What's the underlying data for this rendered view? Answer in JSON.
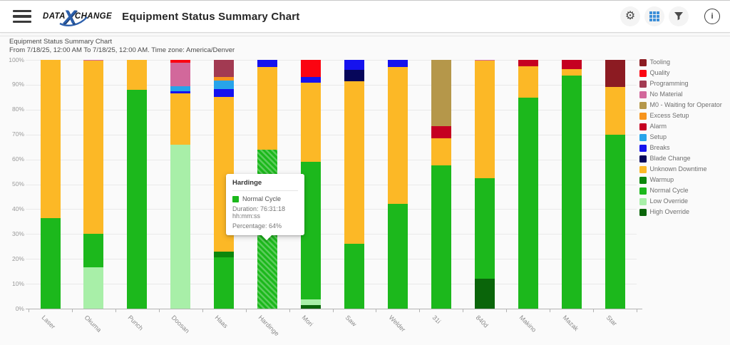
{
  "header": {
    "logo": {
      "part1": "DATA",
      "x": "X",
      "part2": "CHANGE"
    },
    "title": "Equipment Status Summary Chart",
    "icons": {
      "menu": "hamburger-icon",
      "settings": "gear-icon",
      "settings_glyph": "⚙",
      "table": "grid-view-icon",
      "filter": "funnel-icon",
      "info": "info-circle-icon",
      "info_glyph": "i"
    }
  },
  "chart_header": {
    "title": "Equipment Status Summary Chart",
    "range": "From 7/18/25, 12:00 AM To 7/18/25, 12:00 AM. Time zone: America/Denver"
  },
  "tooltip": {
    "title": "Hardinge",
    "series": "Normal Cycle",
    "duration": "Duration: 76:31:18 hh:mm:ss",
    "percentage": "Percentage: 64%",
    "swatch_color": "#1CB81C"
  },
  "chart_data": {
    "type": "bar",
    "stacked": true,
    "unit": "percent",
    "title": "Equipment Status Summary Chart",
    "subtitle": "From 7/18/25, 12:00 AM To 7/18/25, 12:00 AM. Time zone: America/Denver",
    "ylim": [
      0,
      100
    ],
    "ytick_labels": [
      "0%",
      "10%",
      "20%",
      "30%",
      "40%",
      "50%",
      "60%",
      "70%",
      "80%",
      "90%",
      "100%"
    ],
    "grid": true,
    "legend_position": "right",
    "legend": [
      {
        "label": "Tooling",
        "color": "#8C1B22"
      },
      {
        "label": "Quality",
        "color": "#FB0411"
      },
      {
        "label": "Programming",
        "color": "#A23A52"
      },
      {
        "label": "No Material",
        "color": "#D2689B"
      },
      {
        "label": "M0 - Waiting for Operator",
        "color": "#B5974A"
      },
      {
        "label": "Excess Setup",
        "color": "#F7941D"
      },
      {
        "label": "Alarm",
        "color": "#C50021"
      },
      {
        "label": "Setup",
        "color": "#27A4EA"
      },
      {
        "label": "Breaks",
        "color": "#1512EE"
      },
      {
        "label": "Blade Change",
        "color": "#06065A"
      },
      {
        "label": "Unknown Downtime",
        "color": "#FCB826"
      },
      {
        "label": "Warmup",
        "color": "#0C870C"
      },
      {
        "label": "Normal Cycle",
        "color": "#1CB81C"
      },
      {
        "label": "Low Override",
        "color": "#A8EFA8"
      },
      {
        "label": "High Override",
        "color": "#0A650A"
      }
    ],
    "categories": [
      "Laser",
      "Okuma",
      "Punch",
      "Doosan",
      "Haas",
      "Hardinge",
      "Mori",
      "Saw",
      "Welder",
      "31i",
      "840d",
      "Makino",
      "Mazak",
      "Star"
    ],
    "bars": [
      {
        "category": "Laser",
        "segments": [
          [
            "Normal Cycle",
            36.5
          ],
          [
            "Unknown Downtime",
            63.5
          ]
        ]
      },
      {
        "category": "Okuma",
        "segments": [
          [
            "Low Override",
            16.5
          ],
          [
            "Normal Cycle",
            13.7
          ],
          [
            "Unknown Downtime",
            69.4
          ],
          [
            "No Material",
            0.4
          ]
        ]
      },
      {
        "category": "Punch",
        "segments": [
          [
            "Normal Cycle",
            88
          ],
          [
            "Unknown Downtime",
            12
          ]
        ]
      },
      {
        "category": "Doosan",
        "segments": [
          [
            "Low Override",
            66
          ],
          [
            "Unknown Downtime",
            20.5
          ],
          [
            "Breaks",
            1
          ],
          [
            "Setup",
            2
          ],
          [
            "No Material",
            9.3
          ],
          [
            "Quality",
            1.2
          ]
        ]
      },
      {
        "category": "Haas",
        "segments": [
          [
            "Normal Cycle",
            20.5
          ],
          [
            "Warmup",
            2.5
          ],
          [
            "Unknown Downtime",
            62
          ],
          [
            "Breaks",
            3.3
          ],
          [
            "Setup",
            3.4
          ],
          [
            "Excess Setup",
            1.3
          ],
          [
            "Programming",
            7
          ]
        ]
      },
      {
        "category": "Hardinge",
        "segments": [
          [
            "Normal Cycle",
            64
          ],
          [
            "Unknown Downtime",
            33
          ],
          [
            "Breaks",
            3
          ]
        ],
        "highlight": "Normal Cycle"
      },
      {
        "category": "Mori",
        "segments": [
          [
            "High Override",
            1.3
          ],
          [
            "Low Override",
            2.5
          ],
          [
            "Normal Cycle",
            55.2
          ],
          [
            "Unknown Downtime",
            31.8
          ],
          [
            "Breaks",
            2.2
          ],
          [
            "Quality",
            7
          ]
        ]
      },
      {
        "category": "Saw",
        "segments": [
          [
            "Normal Cycle",
            26
          ],
          [
            "Unknown Downtime",
            65.5
          ],
          [
            "Blade Change",
            4.5
          ],
          [
            "Breaks",
            4
          ]
        ]
      },
      {
        "category": "Welder",
        "segments": [
          [
            "Normal Cycle",
            42
          ],
          [
            "Unknown Downtime",
            55
          ],
          [
            "Breaks",
            3
          ]
        ]
      },
      {
        "category": "31i",
        "segments": [
          [
            "Normal Cycle",
            57.5
          ],
          [
            "Unknown Downtime",
            11
          ],
          [
            "Alarm",
            4.8
          ],
          [
            "M0 - Waiting for Operator",
            26.7
          ]
        ]
      },
      {
        "category": "840d",
        "segments": [
          [
            "High Override",
            11.9
          ],
          [
            "Normal Cycle",
            40.5
          ],
          [
            "Unknown Downtime",
            47.2
          ],
          [
            "No Material",
            0.4
          ]
        ]
      },
      {
        "category": "Makino",
        "segments": [
          [
            "Normal Cycle",
            84.7
          ],
          [
            "Unknown Downtime",
            12.6
          ],
          [
            "Alarm",
            2.7
          ]
        ]
      },
      {
        "category": "Mazak",
        "segments": [
          [
            "Normal Cycle",
            93.8
          ],
          [
            "Unknown Downtime",
            2.4
          ],
          [
            "Alarm",
            3.8
          ]
        ]
      },
      {
        "category": "Star",
        "segments": [
          [
            "Normal Cycle",
            70
          ],
          [
            "Unknown Downtime",
            19
          ],
          [
            "Tooling",
            11
          ]
        ]
      }
    ],
    "highlighted": {
      "category": "Hardinge",
      "series": "Normal Cycle",
      "percentage": 64,
      "duration": "76:31:18"
    }
  }
}
